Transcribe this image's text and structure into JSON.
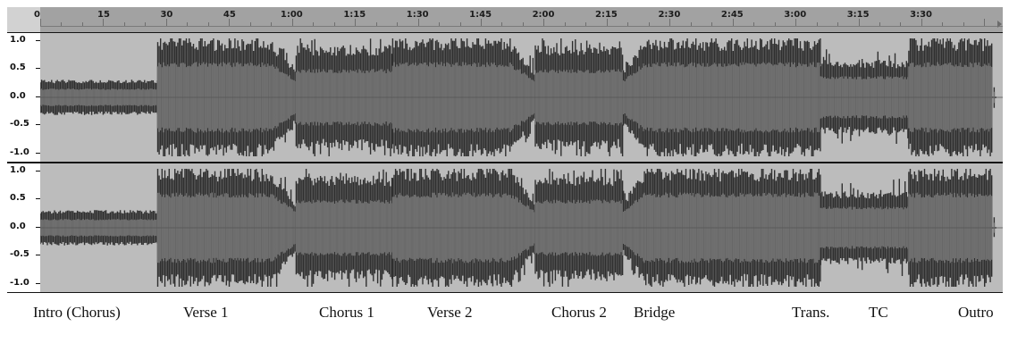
{
  "timeline": {
    "ruler_labels": [
      "0",
      "15",
      "30",
      "45",
      "1:00",
      "1:15",
      "1:30",
      "1:45",
      "2:00",
      "2:15",
      "2:30",
      "2:45",
      "3:00",
      "3:15",
      "3:30"
    ],
    "tick_step_seconds": 15,
    "axis_max_seconds": 225
  },
  "tracks": [
    {
      "channel": "left",
      "scale_labels": [
        "1.0",
        "0.5",
        "0.0",
        "-0.5",
        "-1.0"
      ]
    },
    {
      "channel": "right",
      "scale_labels": [
        "1.0",
        "0.5",
        "0.0",
        "-0.5",
        "-1.0"
      ]
    }
  ],
  "waveform_segments": [
    {
      "start": 0,
      "end": 28,
      "level": "low"
    },
    {
      "start": 28,
      "end": 55,
      "level": "loud"
    },
    {
      "start": 55,
      "end": 61,
      "level": "drop"
    },
    {
      "start": 61,
      "end": 84,
      "level": "medium"
    },
    {
      "start": 84,
      "end": 112,
      "level": "loud"
    },
    {
      "start": 112,
      "end": 118,
      "level": "drop"
    },
    {
      "start": 118,
      "end": 139,
      "level": "medium"
    },
    {
      "start": 139,
      "end": 144,
      "level": "rise"
    },
    {
      "start": 144,
      "end": 186,
      "level": "loud"
    },
    {
      "start": 186,
      "end": 207,
      "level": "quiet"
    },
    {
      "start": 207,
      "end": 227,
      "level": "loud"
    },
    {
      "start": 227,
      "end": 238,
      "level": "tail"
    }
  ],
  "sections": [
    {
      "label": "Intro (Chorus)"
    },
    {
      "label": "Verse 1"
    },
    {
      "label": "Chorus 1"
    },
    {
      "label": "Verse 2"
    },
    {
      "label": "Chorus 2"
    },
    {
      "label": "Bridge"
    },
    {
      "label": "Trans."
    },
    {
      "label": "TC"
    },
    {
      "label": "Outro"
    }
  ],
  "colors": {
    "background": "#ffffff",
    "ruler": "#a2a2a2",
    "track_gap": "#bcbcbc",
    "waveform_peak": "#2f2f2f",
    "waveform_rms": "#6f6f6f",
    "frame": "#141414"
  }
}
